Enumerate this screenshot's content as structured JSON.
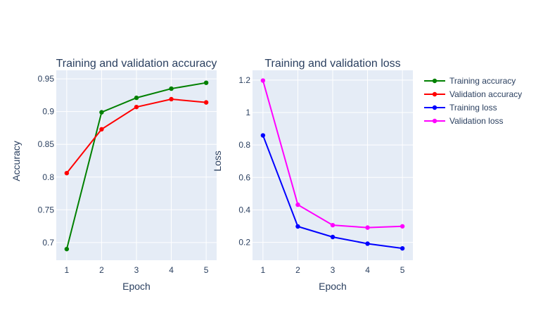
{
  "chart_data": [
    {
      "type": "line",
      "title": "Training and validation accuracy",
      "xlabel": "Epoch",
      "ylabel": "Accuracy",
      "x": [
        1,
        2,
        3,
        4,
        5
      ],
      "xlim": [
        0.7,
        5.3
      ],
      "ylim": [
        0.673,
        0.963
      ],
      "yticks": [
        0.7,
        0.75,
        0.8,
        0.85,
        0.9,
        0.95
      ],
      "ytick_labels": [
        "0.7",
        "0.75",
        "0.8",
        "0.85",
        "0.9",
        "0.95"
      ],
      "grid": true,
      "series": [
        {
          "name": "Training accuracy",
          "color": "#008000",
          "values": [
            0.69,
            0.899,
            0.921,
            0.935,
            0.944
          ]
        },
        {
          "name": "Validation accuracy",
          "color": "#ff0000",
          "values": [
            0.806,
            0.873,
            0.907,
            0.919,
            0.914
          ]
        }
      ]
    },
    {
      "type": "line",
      "title": "Training and validation loss",
      "xlabel": "Epoch",
      "ylabel": "Loss",
      "x": [
        1,
        2,
        3,
        4,
        5
      ],
      "xlim": [
        0.7,
        5.3
      ],
      "ylim": [
        0.09,
        1.26
      ],
      "yticks": [
        0.2,
        0.4,
        0.6,
        0.8,
        1,
        1.2
      ],
      "ytick_labels": [
        "0.2",
        "0.4",
        "0.6",
        "0.8",
        "1",
        "1.2"
      ],
      "grid": true,
      "series": [
        {
          "name": "Training loss",
          "color": "#0000ff",
          "values": [
            0.859,
            0.298,
            0.233,
            0.192,
            0.163
          ]
        },
        {
          "name": "Validation loss",
          "color": "#ff00ff",
          "values": [
            1.197,
            0.432,
            0.306,
            0.291,
            0.299
          ]
        }
      ]
    }
  ],
  "legend": {
    "placement": "right",
    "entries": [
      {
        "label": "Training accuracy",
        "color": "#008000"
      },
      {
        "label": "Validation accuracy",
        "color": "#ff0000"
      },
      {
        "label": "Training loss",
        "color": "#0000ff"
      },
      {
        "label": "Validation loss",
        "color": "#ff00ff"
      }
    ]
  },
  "style": {
    "plot_bg": "#e5ecf6",
    "grid_color": "#ffffff",
    "text_color": "#2a3f5f"
  }
}
